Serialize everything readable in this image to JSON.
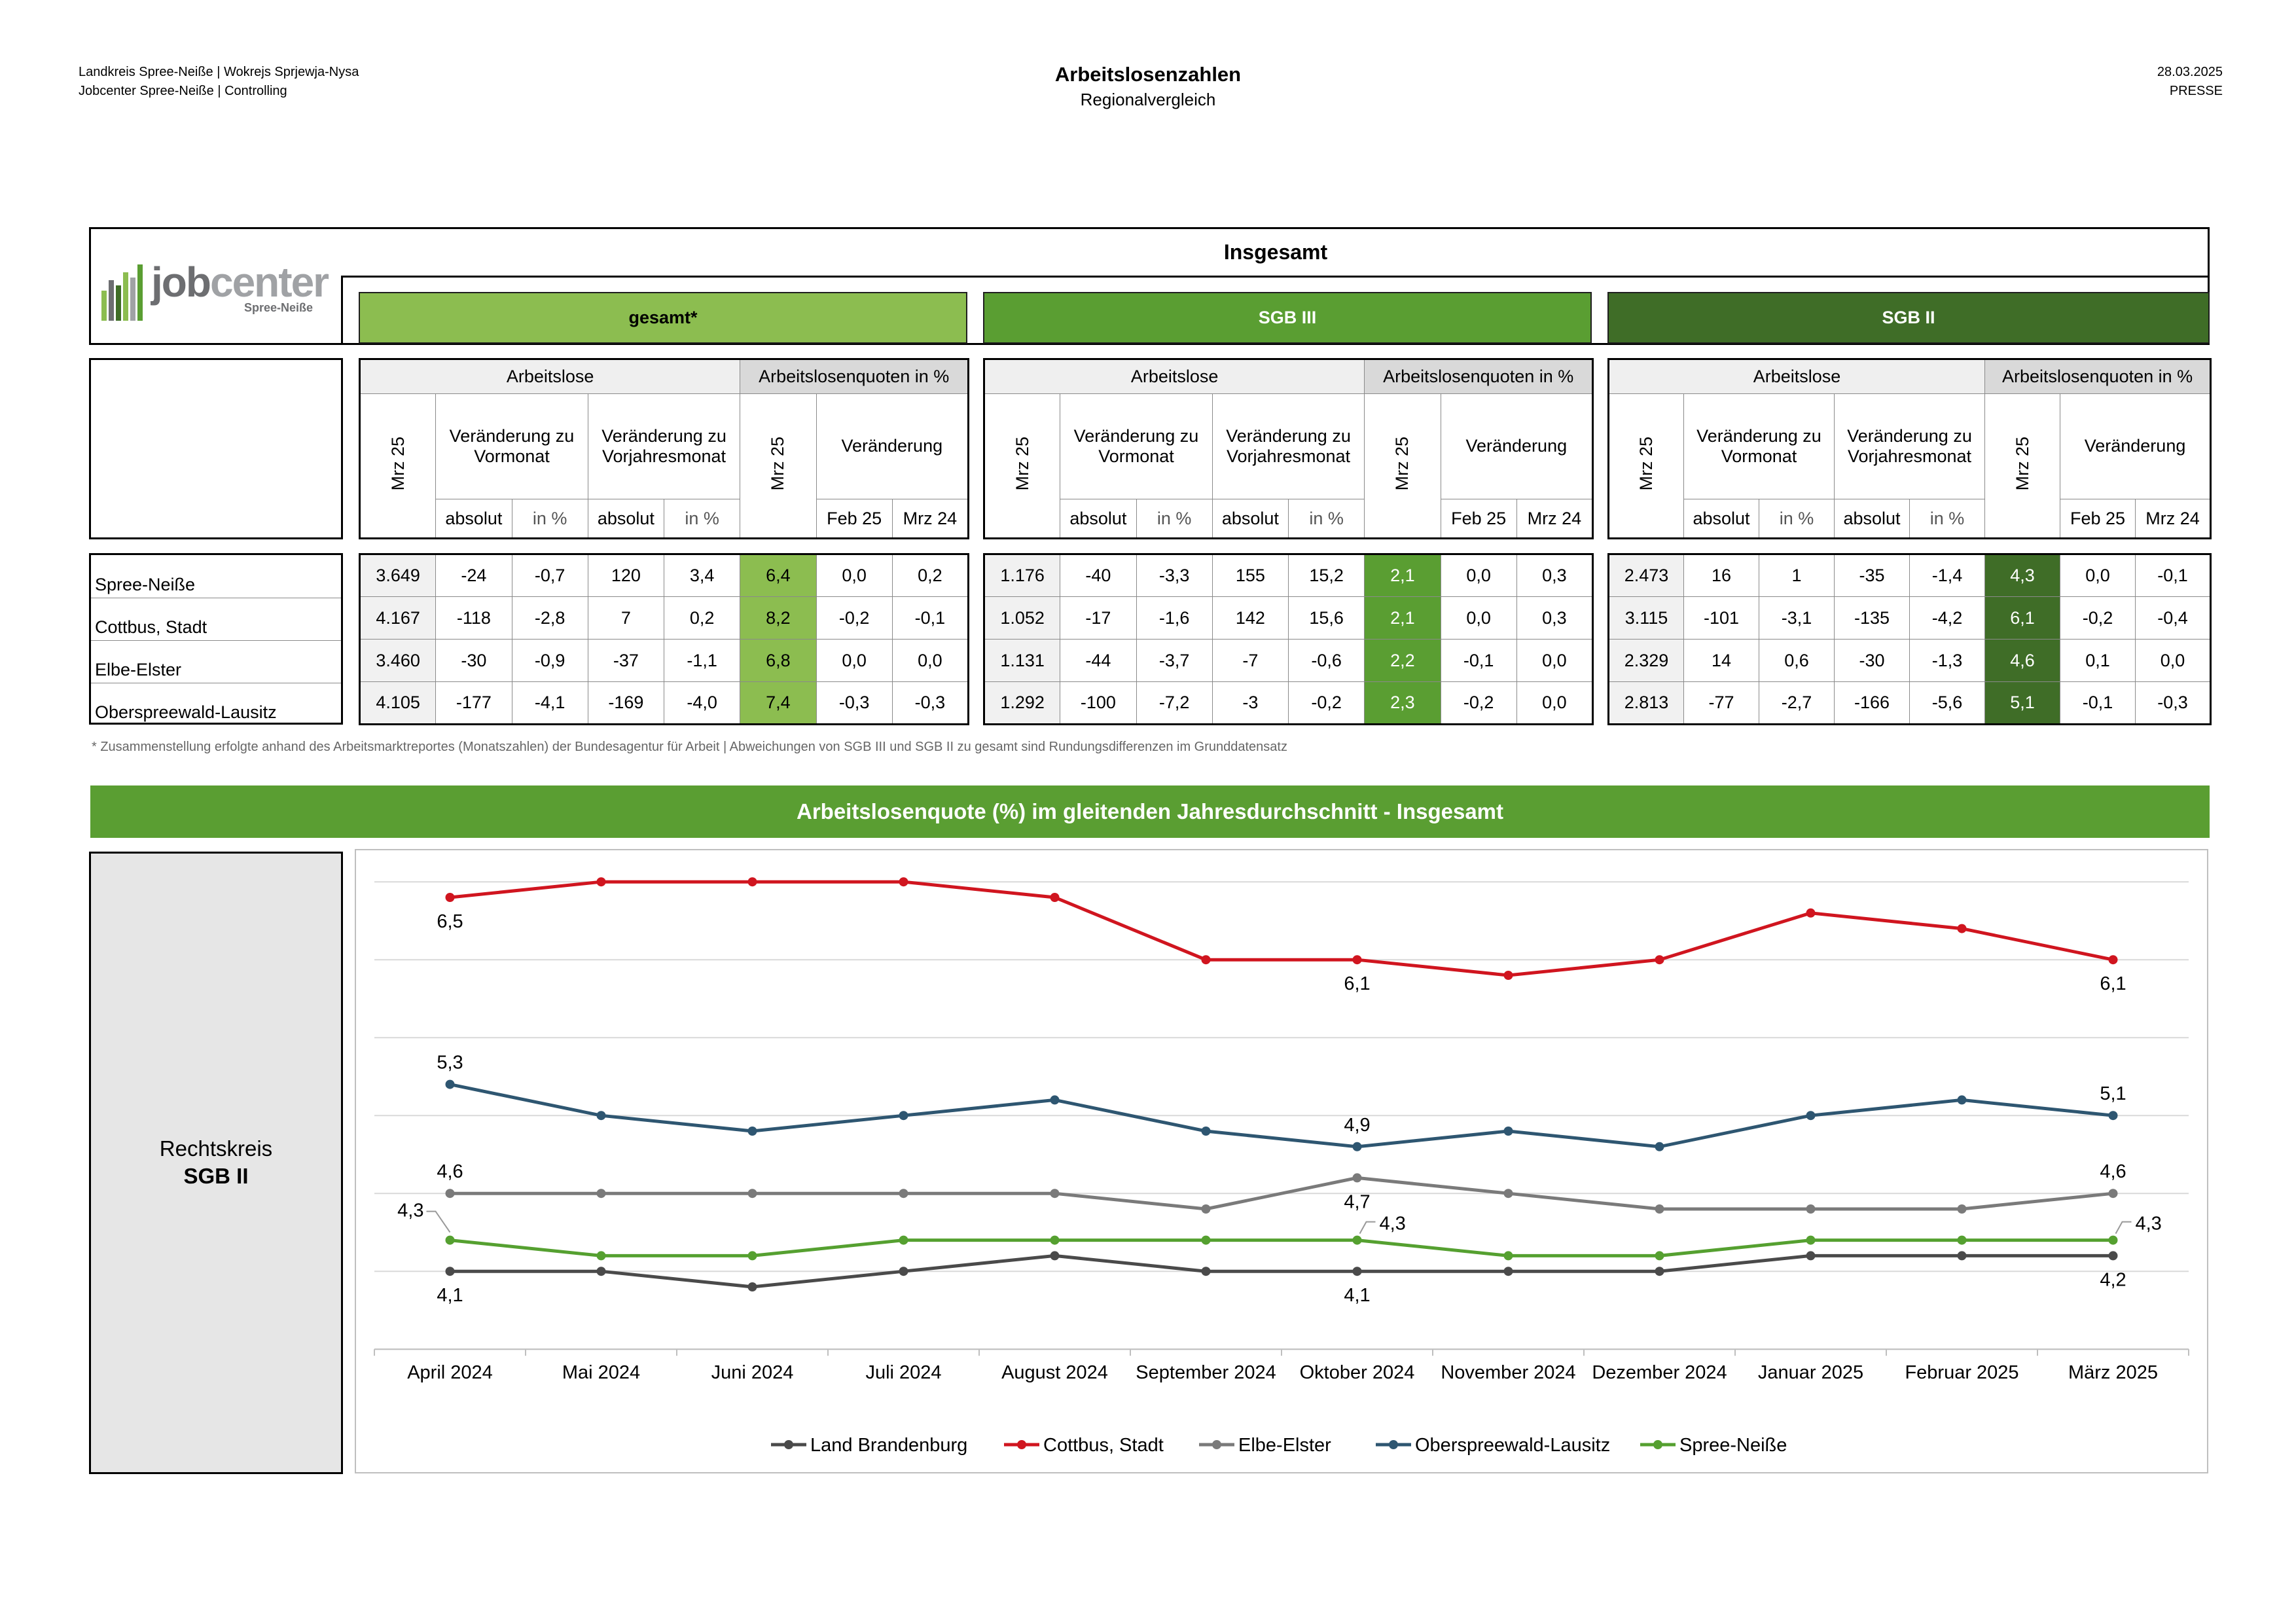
{
  "header": {
    "left_line1": "Landkreis Spree-Neiße | Wokrejs Sprjewja-Nysa",
    "left_line2": "Jobcenter Spree-Neiße | Controlling",
    "title": "Arbeitslosenzahlen",
    "subtitle": "Regionalvergleich",
    "date": "28.03.2025",
    "tag": "PRESSE"
  },
  "logo": {
    "word_a": "job",
    "word_b": "center",
    "sub": "Spree-Neiße"
  },
  "section_title": "Insgesamt",
  "colors": {
    "gesamt": "#8cbd50",
    "sgb3": "#5a9e32",
    "sgb2": "#3f6d27",
    "cottbus": "#d0151f",
    "osl": "#2e5671",
    "elbe": "#7a7a7a",
    "spree": "#55a030",
    "land": "#4a4a4a"
  },
  "groups": [
    {
      "label": "gesamt*",
      "head": {
        "arbeitslose": "Arbeitslose",
        "quoten": "Arbeitslosenquoten in %",
        "mrz": "Mrz 25",
        "vormonat": "Veränderung zu Vormonat",
        "vorjahr": "Veränderung zu Vorjahresmonat",
        "veraenderung": "Veränderung",
        "absolut": "absolut",
        "inp": "in %",
        "feb": "Feb 25",
        "mrz24": "Mrz 24"
      },
      "rows": [
        [
          "3.649",
          "-24",
          "-0,7",
          "120",
          "3,4",
          "6,4",
          "0,0",
          "0,2"
        ],
        [
          "4.167",
          "-118",
          "-2,8",
          "7",
          "0,2",
          "8,2",
          "-0,2",
          "-0,1"
        ],
        [
          "3.460",
          "-30",
          "-0,9",
          "-37",
          "-1,1",
          "6,8",
          "0,0",
          "0,0"
        ],
        [
          "4.105",
          "-177",
          "-4,1",
          "-169",
          "-4,0",
          "7,4",
          "-0,3",
          "-0,3"
        ]
      ]
    },
    {
      "label": "SGB III",
      "head": {
        "arbeitslose": "Arbeitslose",
        "quoten": "Arbeitslosenquoten in %",
        "mrz": "Mrz 25",
        "vormonat": "Veränderung zu Vormonat",
        "vorjahr": "Veränderung zu Vorjahresmonat",
        "veraenderung": "Veränderung",
        "absolut": "absolut",
        "inp": "in %",
        "feb": "Feb 25",
        "mrz24": "Mrz 24"
      },
      "rows": [
        [
          "1.176",
          "-40",
          "-3,3",
          "155",
          "15,2",
          "2,1",
          "0,0",
          "0,3"
        ],
        [
          "1.052",
          "-17",
          "-1,6",
          "142",
          "15,6",
          "2,1",
          "0,0",
          "0,3"
        ],
        [
          "1.131",
          "-44",
          "-3,7",
          "-7",
          "-0,6",
          "2,2",
          "-0,1",
          "0,0"
        ],
        [
          "1.292",
          "-100",
          "-7,2",
          "-3",
          "-0,2",
          "2,3",
          "-0,2",
          "0,0"
        ]
      ]
    },
    {
      "label": "SGB II",
      "head": {
        "arbeitslose": "Arbeitslose",
        "quoten": "Arbeitslosenquoten in %",
        "mrz": "Mrz 25",
        "vormonat": "Veränderung zu Vormonat",
        "vorjahr": "Veränderung zu Vorjahresmonat",
        "veraenderung": "Veränderung",
        "absolut": "absolut",
        "inp": "in %",
        "feb": "Feb 25",
        "mrz24": "Mrz 24"
      },
      "rows": [
        [
          "2.473",
          "16",
          "1",
          "-35",
          "-1,4",
          "4,3",
          "0,0",
          "-0,1"
        ],
        [
          "3.115",
          "-101",
          "-3,1",
          "-135",
          "-4,2",
          "6,1",
          "-0,2",
          "-0,4"
        ],
        [
          "2.329",
          "14",
          "0,6",
          "-30",
          "-1,3",
          "4,6",
          "0,1",
          "0,0"
        ],
        [
          "2.813",
          "-77",
          "-2,7",
          "-166",
          "-5,6",
          "5,1",
          "-0,1",
          "-0,3"
        ]
      ]
    }
  ],
  "regions": [
    "Spree-Neiße",
    "Cottbus, Stadt",
    "Elbe-Elster",
    "Oberspreewald-Lausitz"
  ],
  "footnote": "* Zusammenstellung erfolgte anhand des Arbeitsmarktreportes (Monatszahlen) der Bundesagentur für Arbeit | Abweichungen von SGB III und SGB II zu gesamt sind Rundungsdifferenzen im Grunddatensatz",
  "chart_title": "Arbeitslosenquote (%) im gleitenden Jahresdurchschnitt - Insgesamt",
  "side_box": {
    "line1": "Rechtskreis",
    "line2": "SGB II"
  },
  "chart_data": {
    "type": "line",
    "title": "Arbeitslosenquote (%) im gleitenden Jahresdurchschnitt - Insgesamt",
    "categories": [
      "April 2024",
      "Mai 2024",
      "Juni 2024",
      "Juli 2024",
      "August 2024",
      "September 2024",
      "Oktober 2024",
      "November 2024",
      "Dezember 2024",
      "Januar 2025",
      "Februar 2025",
      "März 2025"
    ],
    "ylim": [
      3.6,
      6.6
    ],
    "grid": true,
    "legend": "bottom",
    "series": [
      {
        "name": "Land Brandenburg",
        "color": "#4a4a4a",
        "values": [
          4.1,
          4.1,
          4.0,
          4.1,
          4.2,
          4.1,
          4.1,
          4.1,
          4.1,
          4.2,
          4.2,
          4.2
        ],
        "labels": {
          "0": "4,1",
          "6": "4,1",
          "11": "4,2"
        },
        "label_pos": "below"
      },
      {
        "name": "Cottbus, Stadt",
        "color": "#d0151f",
        "values": [
          6.5,
          6.6,
          6.6,
          6.6,
          6.5,
          6.1,
          6.1,
          6.0,
          6.1,
          6.4,
          6.3,
          6.1
        ],
        "labels": {
          "0": "6,5",
          "6": "6,1",
          "11": "6,1"
        },
        "label_pos": "below"
      },
      {
        "name": "Elbe-Elster",
        "color": "#7a7a7a",
        "values": [
          4.6,
          4.6,
          4.6,
          4.6,
          4.6,
          4.5,
          4.7,
          4.6,
          4.5,
          4.5,
          4.5,
          4.6
        ],
        "labels": {
          "0": "4,6",
          "11": "4,6"
        },
        "label_pos": "above"
      },
      {
        "name": "Oberspreewald-Lausitz",
        "color": "#2e5671",
        "values": [
          5.3,
          5.1,
          5.0,
          5.1,
          5.2,
          5.0,
          4.9,
          5.0,
          4.9,
          5.1,
          5.2,
          5.1
        ],
        "labels": {
          "0": "5,3",
          "6": "4,9",
          "11": "5,1"
        },
        "label_pos": "above"
      },
      {
        "name": "Spree-Neiße",
        "color": "#55a030",
        "values": [
          4.3,
          4.2,
          4.2,
          4.3,
          4.3,
          4.3,
          4.3,
          4.2,
          4.2,
          4.3,
          4.3,
          4.3
        ],
        "labels": {
          "0": "4,3",
          "6": "4,3",
          "11": "4,3"
        },
        "label_pos": "callout"
      }
    ],
    "extra_label": {
      "text": "4,7",
      "index": 6
    }
  }
}
